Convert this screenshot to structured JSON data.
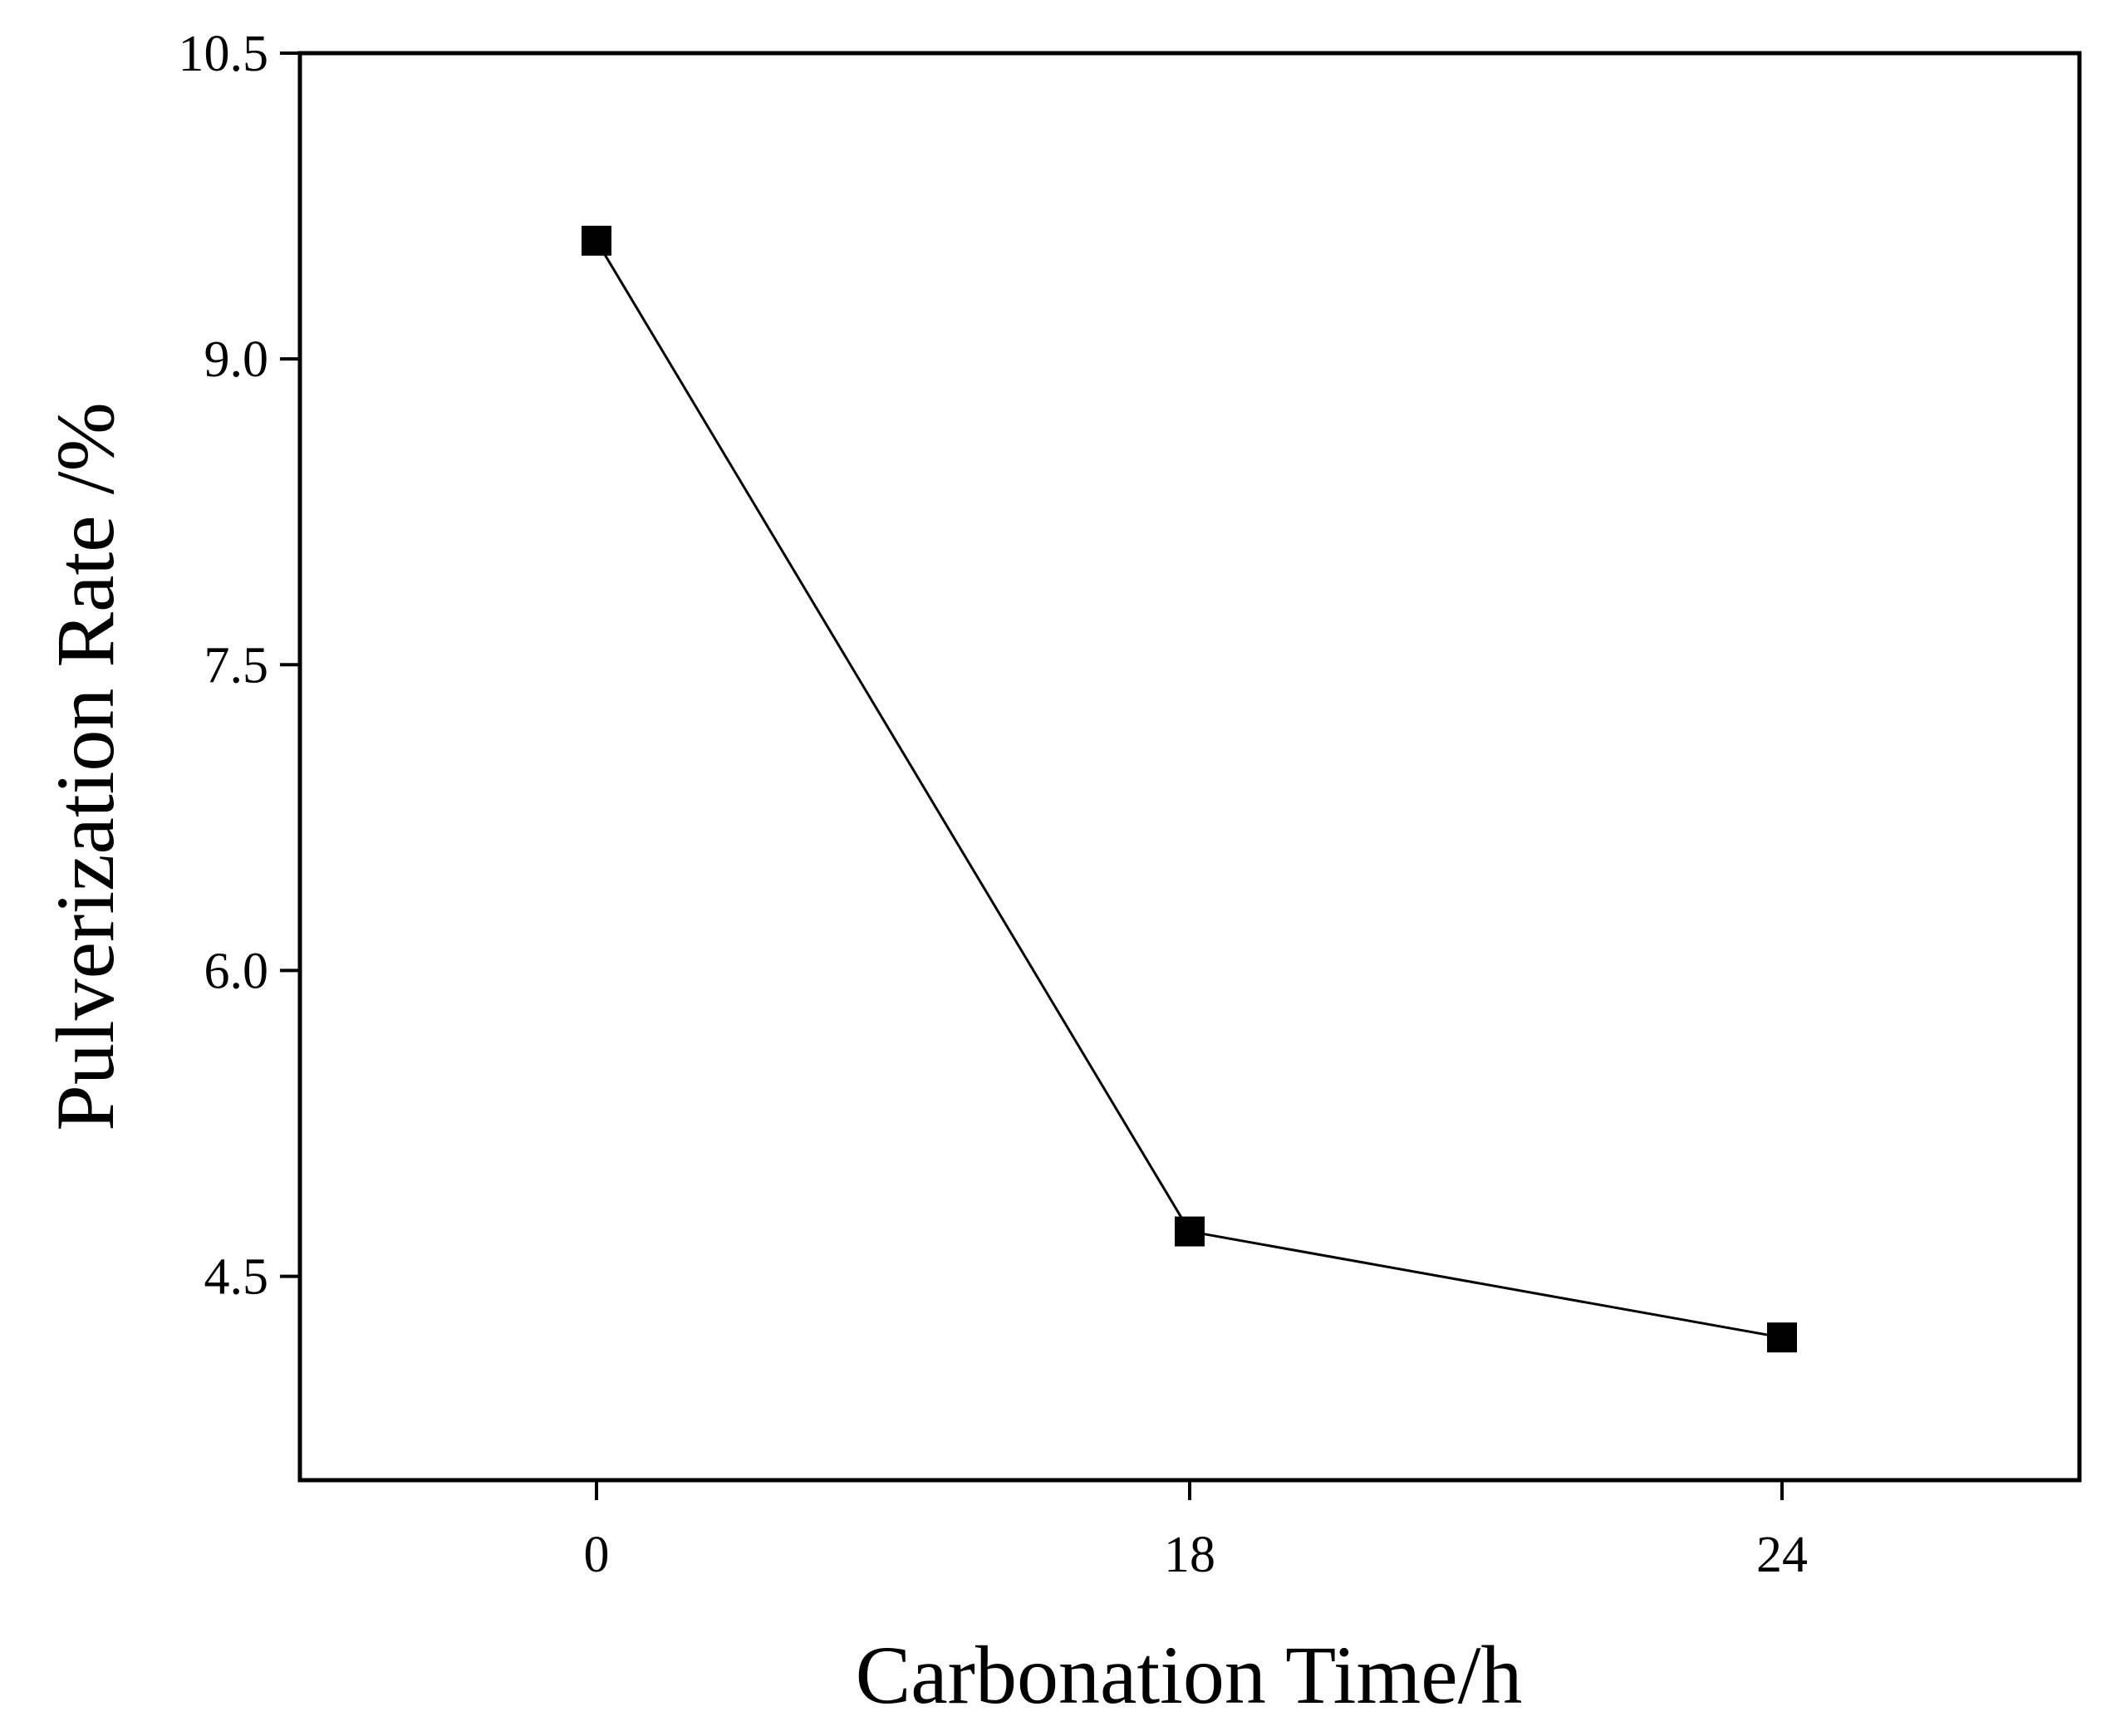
{
  "chart_data": {
    "type": "line",
    "title": "",
    "xlabel": "Carbonation Time/h",
    "ylabel": "Pulverization Rate /%",
    "categories": [
      "0",
      "18",
      "24"
    ],
    "series": [
      {
        "values": [
          9.58,
          4.72,
          4.2
        ]
      }
    ],
    "ylim": [
      3.5,
      10.5
    ],
    "yticks": [
      "4.5",
      "6.0",
      "7.5",
      "9.0",
      "10.5"
    ],
    "marker": "square",
    "grid": false,
    "colors": {
      "line": "#000000",
      "marker": "#000000",
      "axis": "#000000"
    }
  }
}
